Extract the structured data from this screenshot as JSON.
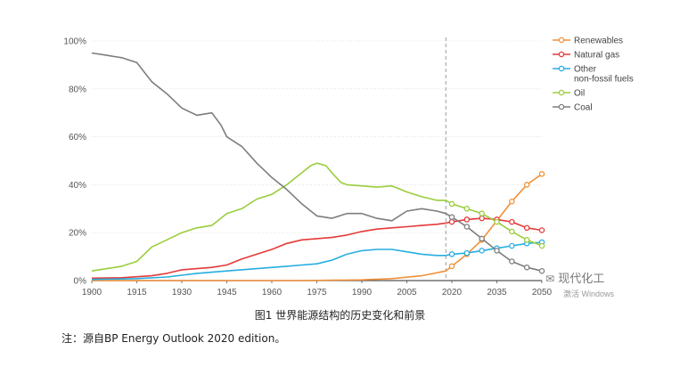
{
  "caption": "图1  世界能源结构的历史变化和前景",
  "note": "注：源自BP Energy Outlook 2020 edition。",
  "watermark": {
    "logo_text": "现代化工",
    "sub_text": "激活 Windows"
  },
  "chart_data": {
    "type": "line",
    "title": "",
    "xlabel": "",
    "ylabel": "",
    "xlim": [
      1900,
      2050
    ],
    "ylim": [
      0,
      100
    ],
    "x_ticks": [
      1900,
      1915,
      1930,
      1945,
      1960,
      1975,
      1990,
      2005,
      2020,
      2035,
      2050
    ],
    "y_ticks": [
      {
        "value": 0,
        "label": "0%"
      },
      {
        "value": 20,
        "label": "20%"
      },
      {
        "value": 40,
        "label": "40%"
      },
      {
        "value": 60,
        "label": "60%"
      },
      {
        "value": 80,
        "label": "80%"
      },
      {
        "value": 100,
        "label": "100%"
      }
    ],
    "divider_year": 2018,
    "legend_position": "right",
    "series": [
      {
        "name": "Renewables",
        "legend": [
          "Renewables"
        ],
        "color": "#f0913a",
        "x": [
          1900,
          1950,
          1970,
          1990,
          2000,
          2010,
          2018
        ],
        "y": [
          0,
          0,
          0,
          0.3,
          0.8,
          2,
          4
        ],
        "proj_x": [
          2018,
          2020,
          2025,
          2030,
          2035,
          2040,
          2045,
          2050
        ],
        "proj_y": [
          4,
          6,
          11,
          17,
          25,
          33,
          40,
          44.5
        ]
      },
      {
        "name": "Natural gas",
        "legend": [
          "Natural gas"
        ],
        "color": "#e53939",
        "x": [
          1900,
          1910,
          1920,
          1925,
          1930,
          1935,
          1940,
          1945,
          1950,
          1955,
          1960,
          1965,
          1970,
          1975,
          1980,
          1985,
          1990,
          1995,
          2000,
          2005,
          2010,
          2015,
          2018
        ],
        "y": [
          1,
          1.2,
          2,
          3,
          4.5,
          5,
          5.5,
          6.5,
          9,
          11,
          13,
          15.5,
          17,
          17.5,
          18,
          19,
          20.5,
          21.5,
          22,
          22.5,
          23,
          23.5,
          24
        ],
        "proj_x": [
          2018,
          2020,
          2025,
          2030,
          2035,
          2040,
          2045,
          2050
        ],
        "proj_y": [
          24,
          24.5,
          25.5,
          26,
          25.5,
          24.5,
          22,
          21
        ]
      },
      {
        "name": "Other non-fossil fuels",
        "legend": [
          "Other",
          "non-fossil fuels"
        ],
        "color": "#26aee0",
        "x": [
          1900,
          1915,
          1925,
          1935,
          1945,
          1955,
          1965,
          1970,
          1975,
          1980,
          1985,
          1990,
          1995,
          2000,
          2005,
          2010,
          2015,
          2018
        ],
        "y": [
          0.5,
          0.8,
          1.5,
          3,
          4,
          5,
          6,
          6.5,
          7,
          8.5,
          11,
          12.5,
          13,
          13,
          12,
          11,
          10.5,
          10.5
        ],
        "proj_x": [
          2018,
          2020,
          2025,
          2030,
          2035,
          2040,
          2045,
          2050
        ],
        "proj_y": [
          10.5,
          11,
          11.5,
          12.5,
          13.5,
          14.5,
          15.5,
          16
        ]
      },
      {
        "name": "Oil",
        "legend": [
          "Oil"
        ],
        "color": "#9acd3c",
        "x": [
          1900,
          1905,
          1910,
          1915,
          1920,
          1925,
          1930,
          1935,
          1940,
          1945,
          1950,
          1955,
          1960,
          1965,
          1970,
          1973,
          1975,
          1978,
          1980,
          1983,
          1985,
          1990,
          1995,
          2000,
          2005,
          2010,
          2015,
          2018
        ],
        "y": [
          4,
          5,
          6,
          8,
          14,
          17,
          20,
          22,
          23,
          28,
          30,
          34,
          36,
          40,
          45,
          48,
          49,
          48,
          45,
          41,
          40,
          39.5,
          39,
          39.5,
          37,
          35,
          33.5,
          33.5
        ],
        "proj_x": [
          2018,
          2020,
          2025,
          2030,
          2035,
          2040,
          2045,
          2050
        ],
        "proj_y": [
          33.5,
          32,
          30,
          28,
          24.5,
          20.5,
          17,
          14.5
        ]
      },
      {
        "name": "Coal",
        "legend": [
          "Coal"
        ],
        "color": "#7d7d7d",
        "x": [
          1900,
          1905,
          1910,
          1915,
          1920,
          1925,
          1930,
          1935,
          1940,
          1943,
          1945,
          1950,
          1955,
          1960,
          1965,
          1970,
          1975,
          1980,
          1985,
          1990,
          1995,
          2000,
          2005,
          2010,
          2015,
          2018
        ],
        "y": [
          95,
          94,
          93,
          91,
          83,
          78,
          72,
          69,
          70,
          65,
          60,
          56,
          49,
          43,
          38,
          32,
          27,
          26,
          28,
          28,
          26,
          25,
          29,
          30,
          29,
          28
        ],
        "proj_x": [
          2018,
          2020,
          2025,
          2030,
          2035,
          2040,
          2045,
          2050
        ],
        "proj_y": [
          28,
          26.5,
          22.5,
          17.5,
          12.5,
          8,
          5.5,
          4
        ]
      }
    ]
  }
}
